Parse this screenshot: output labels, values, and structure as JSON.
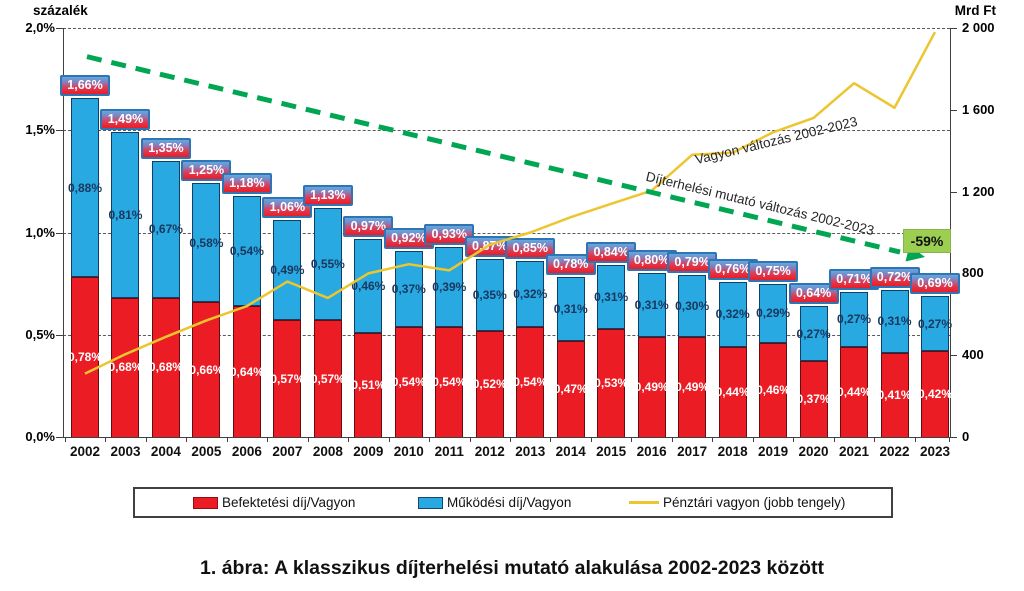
{
  "caption": "1. ábra: A klasszikus díjterhelési mutató alakulása 2002-2023 között",
  "legend": {
    "items": [
      {
        "label": "Befektetési díj/Vagyon",
        "swatch": "red-rect",
        "color": "#EC1C24"
      },
      {
        "label": "Működési díj/Vagyon",
        "swatch": "blue-rect",
        "color": "#29A9E1"
      },
      {
        "label": "Pénztári vagyon (jobb tengely)",
        "swatch": "yellow-line",
        "color": "#ECC52F"
      }
    ]
  },
  "chart_data": {
    "type": "bar",
    "subtype": "stacked-bars-with-lines",
    "title": "1. ábra: A klasszikus díjterhelési mutató alakulása 2002-2023 között",
    "grid": "dashed-horizontal",
    "legend_position": "bottom",
    "left_axis": {
      "title": "százalék",
      "ticks": [
        "2,0%",
        "1,5%",
        "1,0%",
        "0,5%",
        "0,0%"
      ],
      "values": [
        2.0,
        1.5,
        1.0,
        0.5,
        0.0
      ],
      "ylim": [
        0.0,
        2.0
      ]
    },
    "right_axis": {
      "title": "Mrd Ft",
      "ticks": [
        "2 000",
        "1 600",
        "1 200",
        "800",
        "400",
        "0"
      ],
      "values": [
        2000,
        1600,
        1200,
        800,
        400,
        0
      ],
      "ylim": [
        0,
        2000
      ]
    },
    "categories": [
      "2002",
      "2003",
      "2004",
      "2005",
      "2006",
      "2007",
      "2008",
      "2009",
      "2010",
      "2011",
      "2012",
      "2013",
      "2014",
      "2015",
      "2016",
      "2017",
      "2018",
      "2019",
      "2020",
      "2021",
      "2022",
      "2023"
    ],
    "series": [
      {
        "name": "Befektetési díj/Vagyon",
        "type": "bar-stack-bottom",
        "axis": "left",
        "color": "#EC1C24",
        "values": [
          0.78,
          0.68,
          0.68,
          0.66,
          0.64,
          0.57,
          0.57,
          0.51,
          0.54,
          0.54,
          0.52,
          0.54,
          0.47,
          0.53,
          0.49,
          0.49,
          0.44,
          0.46,
          0.37,
          0.44,
          0.41,
          0.42
        ],
        "labels": [
          "0,78%",
          "0,68%",
          "0,68%",
          "0,66%",
          "0,64%",
          "0,57%",
          "0,57%",
          "0,51%",
          "0,54%",
          "0,54%",
          "0,52%",
          "0,54%",
          "0,47%",
          "0,53%",
          "0,49%",
          "0,49%",
          "0,44%",
          "0,46%",
          "0,37%",
          "0,44%",
          "0,41%",
          "0,42%"
        ]
      },
      {
        "name": "Működési díj/Vagyon",
        "type": "bar-stack-top",
        "axis": "left",
        "color": "#29A9E1",
        "values": [
          0.88,
          0.81,
          0.67,
          0.58,
          0.54,
          0.49,
          0.55,
          0.46,
          0.37,
          0.39,
          0.35,
          0.32,
          0.31,
          0.31,
          0.31,
          0.3,
          0.32,
          0.29,
          0.27,
          0.27,
          0.31,
          0.27
        ],
        "labels": [
          "0,88%",
          "0,81%",
          "0,67%",
          "0,58%",
          "0,54%",
          "0,49%",
          "0,55%",
          "0,46%",
          "0,37%",
          "0,39%",
          "0,35%",
          "0,32%",
          "0,31%",
          "0,31%",
          "0,31%",
          "0,30%",
          "0,32%",
          "0,29%",
          "0,27%",
          "0,27%",
          "0,31%",
          "0,27%"
        ]
      },
      {
        "name": "Pénztári vagyon (jobb tengely)",
        "type": "line",
        "axis": "right",
        "color": "#ECC52F",
        "values": [
          310,
          405,
          490,
          570,
          640,
          760,
          680,
          800,
          845,
          815,
          940,
          1000,
          1075,
          1140,
          1205,
          1380,
          1390,
          1490,
          1560,
          1730,
          1610,
          1980
        ]
      }
    ],
    "total_labels": [
      "1,66%",
      "1,49%",
      "1,35%",
      "1,25%",
      "1,18%",
      "1,06%",
      "1,13%",
      "0,97%",
      "0,92%",
      "0,93%",
      "0,87%",
      "0,85%",
      "0,78%",
      "0,84%",
      "0,80%",
      "0,79%",
      "0,76%",
      "0,75%",
      "0,64%",
      "0,71%",
      "0,72%",
      "0,69%"
    ],
    "total_values": [
      1.66,
      1.49,
      1.35,
      1.25,
      1.18,
      1.06,
      1.13,
      0.97,
      0.92,
      0.93,
      0.87,
      0.85,
      0.78,
      0.84,
      0.8,
      0.79,
      0.76,
      0.75,
      0.64,
      0.71,
      0.72,
      0.69
    ],
    "trend_line": {
      "name": "Díjterhelési mutató változás 2002-2023",
      "style": "dashed-arrow",
      "color": "#00A651",
      "start": {
        "year": "2002",
        "pct": 1.86
      },
      "end": {
        "year": "2023",
        "pct": 0.885
      }
    },
    "annotations": [
      {
        "text": "Vagyon változás 2002-2023",
        "refers_to": "Pénztári vagyon"
      },
      {
        "text": "Díjterhelési mutató változás 2002-2023",
        "refers_to": "trend_line"
      },
      {
        "text": "-59%",
        "refers_to": "trend_line",
        "style": "green-badge",
        "color": "#9BCE51"
      }
    ]
  }
}
